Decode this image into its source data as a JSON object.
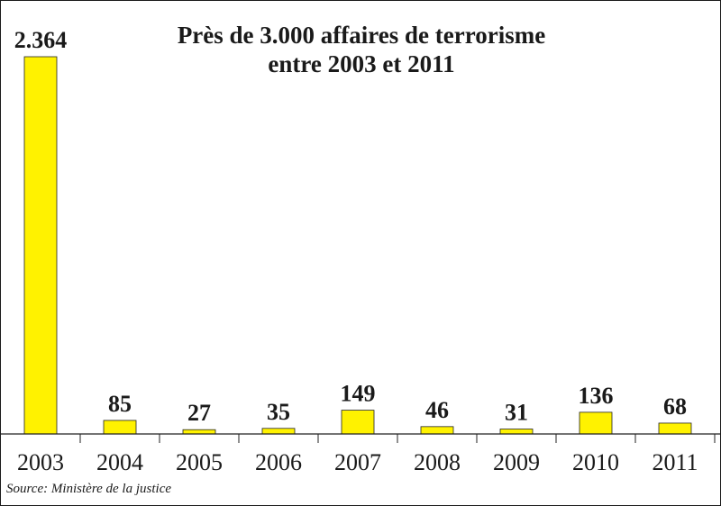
{
  "chart_data": {
    "type": "bar",
    "title_lines": [
      "Près de 3.000 affaires de terrorisme",
      "entre 2003 et 2011"
    ],
    "categories": [
      "2003",
      "2004",
      "2005",
      "2006",
      "2007",
      "2008",
      "2009",
      "2010",
      "2011"
    ],
    "values": [
      2364,
      85,
      27,
      35,
      149,
      46,
      31,
      136,
      68
    ],
    "value_labels": [
      "2.364",
      "85",
      "27",
      "35",
      "149",
      "46",
      "31",
      "136",
      "68"
    ],
    "ylim": [
      0,
      2364
    ],
    "bar_color": "#FFF200",
    "xlabel": "",
    "ylabel": "",
    "grid": false,
    "legend": "none"
  },
  "source": "Source: Ministère de la justice"
}
